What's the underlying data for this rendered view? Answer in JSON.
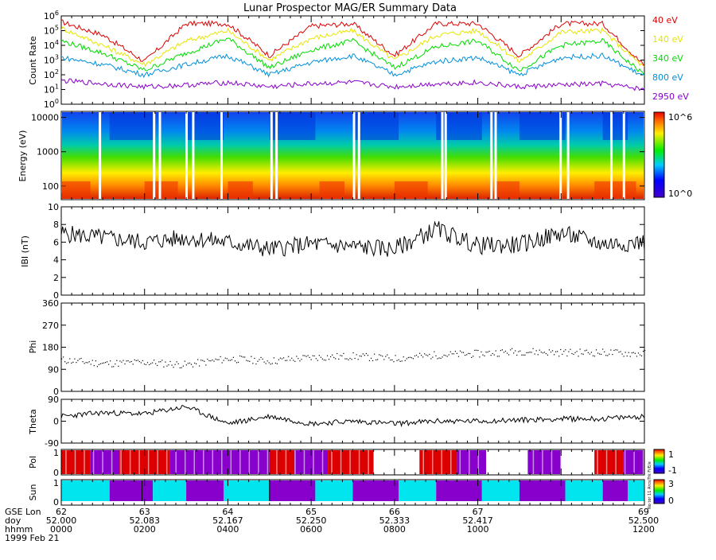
{
  "title": "Lunar Prospector MAG/ER Summary Data",
  "date_label": "1999 Feb 21",
  "colors": {
    "red": "#dd0000",
    "yellow": "#e6e600",
    "green": "#00dd00",
    "blue": "#0090dd",
    "purple": "#8800cc",
    "cyan": "#00e5ee",
    "phi_dots": "#000000"
  },
  "chart_data": [
    {
      "type": "line",
      "panel": "count-rate",
      "ylabel": "Count Rate",
      "yscale": "log",
      "ylim": [
        1,
        1000000
      ],
      "yticks": [
        "10^0",
        "10^1",
        "10^2",
        "10^3",
        "10^4",
        "10^5",
        "10^6"
      ],
      "x": [
        0,
        0.5,
        1,
        1.5,
        2,
        2.5,
        3,
        3.5,
        4,
        4.5,
        5,
        5.5,
        6,
        6.5,
        7
      ],
      "series": [
        {
          "name": "40 eV",
          "color": "#dd0000",
          "values": [
            400000,
            50000,
            800,
            300000,
            300000,
            2000,
            200000,
            300000,
            2000,
            300000,
            300000,
            2000,
            300000,
            300000,
            400
          ]
        },
        {
          "name": "140 eV",
          "color": "#e6e600",
          "values": [
            150000,
            10000,
            500,
            20000,
            100000,
            1000,
            30000,
            100000,
            1000,
            50000,
            100000,
            800,
            80000,
            100000,
            300
          ]
        },
        {
          "name": "340 eV",
          "color": "#00dd00",
          "values": [
            20000,
            3000,
            200,
            3000,
            30000,
            300,
            5000,
            20000,
            300,
            8000,
            20000,
            200,
            10000,
            20000,
            100
          ]
        },
        {
          "name": "800 eV",
          "color": "#0090dd",
          "values": [
            1500,
            500,
            100,
            500,
            2000,
            100,
            700,
            2000,
            100,
            800,
            1500,
            100,
            1500,
            2000,
            80
          ]
        },
        {
          "name": "2950 eV",
          "color": "#8800cc",
          "values": [
            40,
            25,
            15,
            20,
            30,
            15,
            25,
            30,
            15,
            25,
            30,
            15,
            20,
            25,
            10
          ]
        }
      ]
    },
    {
      "type": "heatmap",
      "panel": "spectrogram",
      "ylabel": "Energy (eV)",
      "yscale": "log",
      "ylim": [
        40,
        15000
      ],
      "yticks": [
        "100",
        "1000",
        "10000"
      ],
      "colorbar_max": "10^6",
      "colorbar_min": "10^0"
    },
    {
      "type": "line",
      "panel": "field-magnitude",
      "ylabel": "IBI (nT)",
      "ylim": [
        0,
        10
      ],
      "yticks": [
        "0",
        "2",
        "4",
        "6",
        "8",
        "10"
      ],
      "x": [
        0,
        0.5,
        1,
        1.5,
        2,
        2.5,
        3,
        3.5,
        4,
        4.5,
        5,
        5.5,
        6,
        6.5,
        7
      ],
      "values": [
        7.0,
        6.5,
        6.0,
        6.5,
        6.0,
        5.2,
        5.8,
        5.5,
        5.2,
        7.5,
        5.6,
        5.7,
        7.0,
        5.8,
        6.0
      ]
    },
    {
      "type": "scatter",
      "panel": "phi",
      "ylabel": "Phi",
      "ylim": [
        0,
        360
      ],
      "yticks": [
        "0",
        "90",
        "180",
        "270",
        "360"
      ],
      "x": [
        0,
        0.5,
        1,
        1.5,
        2,
        2.5,
        3,
        3.5,
        4,
        4.5,
        5,
        5.5,
        6,
        6.5,
        7
      ],
      "values": [
        130,
        115,
        120,
        110,
        135,
        125,
        140,
        145,
        135,
        150,
        155,
        165,
        160,
        160,
        155
      ]
    },
    {
      "type": "line",
      "panel": "theta",
      "ylabel": "Theta",
      "ylim": [
        -90,
        90
      ],
      "yticks": [
        "-90",
        "0",
        "90"
      ],
      "x": [
        0,
        0.5,
        1,
        1.5,
        2,
        2.5,
        3,
        3.5,
        4,
        4.5,
        5,
        5.5,
        6,
        6.5,
        7
      ],
      "values": [
        20,
        35,
        30,
        60,
        -10,
        20,
        -10,
        0,
        -10,
        0,
        0,
        5,
        10,
        10,
        20
      ]
    },
    {
      "type": "bar",
      "panel": "polarity",
      "ylabel": "Pol",
      "yticks": [
        "0",
        "1"
      ],
      "colorbar_max": "1",
      "colorbar_min": "-1",
      "colorbar_note": "No tor 11 Arcs/Trk Fi/E/e",
      "segments": [
        {
          "from": 0.0,
          "to": 0.35,
          "state": 1
        },
        {
          "from": 0.35,
          "to": 0.7,
          "state": -1
        },
        {
          "from": 0.7,
          "to": 1.3,
          "state": 1
        },
        {
          "from": 1.3,
          "to": 2.5,
          "state": -1
        },
        {
          "from": 2.5,
          "to": 2.8,
          "state": 1
        },
        {
          "from": 2.8,
          "to": 3.2,
          "state": -1
        },
        {
          "from": 3.2,
          "to": 3.75,
          "state": 1
        },
        {
          "from": 3.75,
          "to": 4.3,
          "state": 0
        },
        {
          "from": 4.3,
          "to": 4.75,
          "state": 1
        },
        {
          "from": 4.75,
          "to": 5.1,
          "state": -1
        },
        {
          "from": 5.1,
          "to": 5.6,
          "state": 0
        },
        {
          "from": 5.6,
          "to": 6.0,
          "state": -1
        },
        {
          "from": 6.0,
          "to": 6.4,
          "state": 0
        },
        {
          "from": 6.4,
          "to": 6.75,
          "state": 1
        },
        {
          "from": 6.75,
          "to": 7.0,
          "state": -1
        }
      ]
    },
    {
      "type": "bar",
      "panel": "sun",
      "ylabel": "Sun",
      "yticks": [
        "0",
        "1"
      ],
      "colorbar_max": "3",
      "colorbar_min": "0",
      "segments": [
        {
          "from": 0.0,
          "to": 0.58,
          "state": "sun"
        },
        {
          "from": 0.58,
          "to": 1.1,
          "state": "shadow"
        },
        {
          "from": 1.1,
          "to": 1.5,
          "state": "sun"
        },
        {
          "from": 1.5,
          "to": 1.95,
          "state": "shadow"
        },
        {
          "from": 1.95,
          "to": 2.5,
          "state": "sun"
        },
        {
          "from": 2.5,
          "to": 3.05,
          "state": "shadow"
        },
        {
          "from": 3.05,
          "to": 3.5,
          "state": "sun"
        },
        {
          "from": 3.5,
          "to": 4.05,
          "state": "shadow"
        },
        {
          "from": 4.05,
          "to": 4.5,
          "state": "sun"
        },
        {
          "from": 4.5,
          "to": 5.05,
          "state": "shadow"
        },
        {
          "from": 5.05,
          "to": 5.5,
          "state": "sun"
        },
        {
          "from": 5.5,
          "to": 6.05,
          "state": "shadow"
        },
        {
          "from": 6.05,
          "to": 6.5,
          "state": "sun"
        },
        {
          "from": 6.5,
          "to": 6.8,
          "state": "shadow"
        },
        {
          "from": 6.8,
          "to": 7.0,
          "state": "sun"
        }
      ]
    }
  ],
  "x_axis": {
    "row_labels": [
      "GSE Lon",
      "doy",
      "hhmm"
    ],
    "ticks": [
      {
        "lon": "62",
        "doy": "52.000",
        "hhmm": "0000"
      },
      {
        "lon": "63",
        "doy": "52.083",
        "hhmm": "0200"
      },
      {
        "lon": "64",
        "doy": "52.167",
        "hhmm": "0400"
      },
      {
        "lon": "65",
        "doy": "52.250",
        "hhmm": "0600"
      },
      {
        "lon": "66",
        "doy": "52.333",
        "hhmm": "0800"
      },
      {
        "lon": "67",
        "doy": "52.417",
        "hhmm": "1000"
      },
      {
        "lon": "69",
        "doy": "52.500",
        "hhmm": "1200"
      }
    ]
  }
}
